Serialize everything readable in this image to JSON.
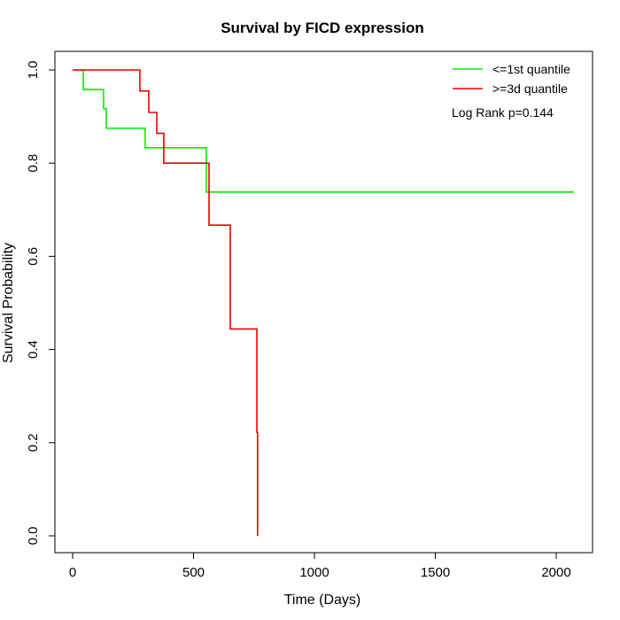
{
  "chart_data": {
    "type": "line",
    "title": "Survival by FICD expression",
    "xlabel": "Time (Days)",
    "ylabel": "Survival Probability",
    "xlim": [
      -75,
      2150
    ],
    "ylim": [
      -0.04,
      1.04
    ],
    "xticks": [
      0,
      500,
      1000,
      1500,
      2000
    ],
    "yticks": [
      0.0,
      0.2,
      0.4,
      0.6,
      0.8,
      1.0
    ],
    "ytick_labels": [
      "0.0",
      "0.2",
      "0.4",
      "0.6",
      "0.8",
      "1.0"
    ],
    "legend_position": "top-right",
    "annotation": "Log Rank p=0.144",
    "series": [
      {
        "name": "<=1st quantile",
        "color": "#00ee00",
        "x": [
          0,
          44,
          128,
          139,
          300,
          553,
          2073
        ],
        "y": [
          1.0,
          0.958,
          0.917,
          0.875,
          0.833,
          0.738,
          0.738
        ]
      },
      {
        "name": ">=3d quantile",
        "color": "#ee0000",
        "x": [
          0,
          278,
          315,
          348,
          377,
          564,
          652,
          762,
          765
        ],
        "y": [
          1.0,
          0.955,
          0.909,
          0.864,
          0.8,
          0.667,
          0.444,
          0.222,
          0.0
        ]
      }
    ]
  }
}
